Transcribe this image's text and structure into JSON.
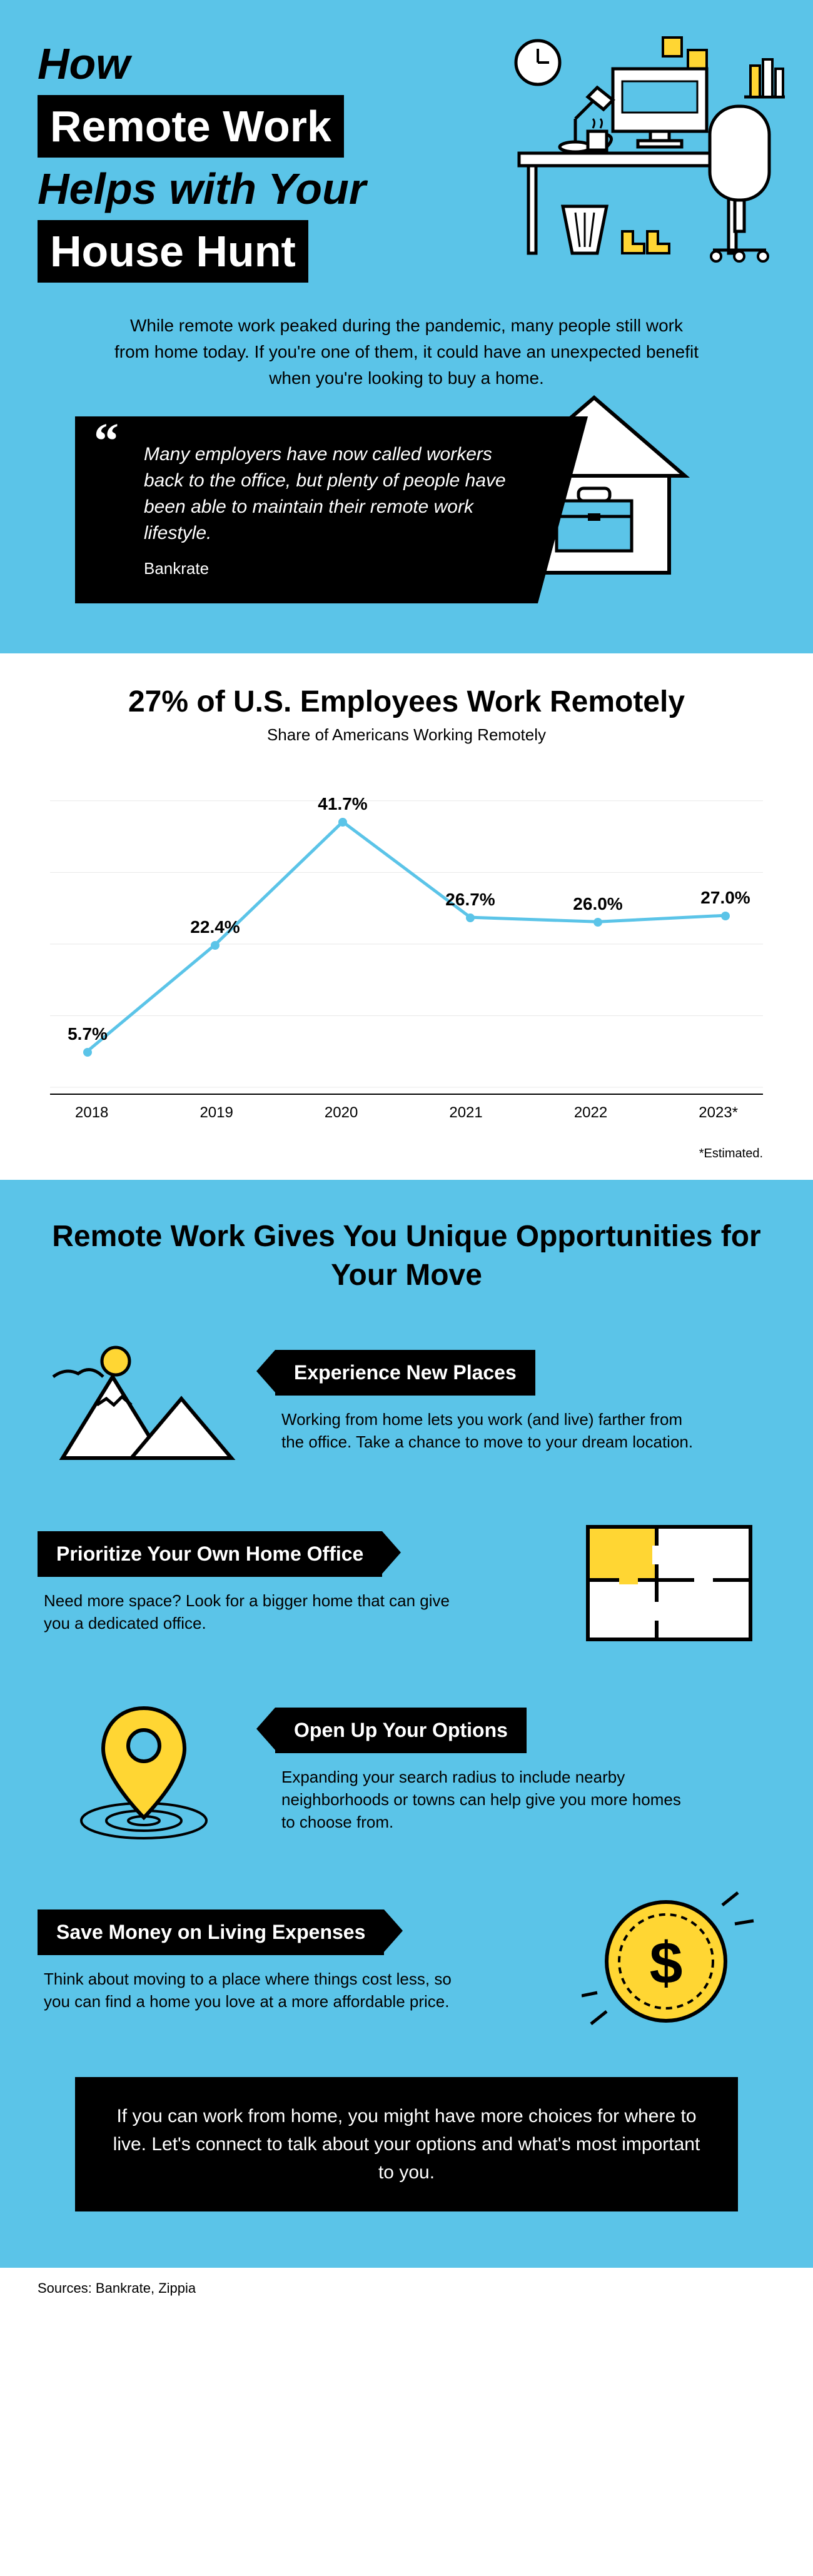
{
  "header": {
    "line1": "How",
    "line2": "Remote Work",
    "line3": "Helps with Your",
    "line4": "House Hunt"
  },
  "intro": "While remote work peaked during the pandemic, many people still work from home today. If you're one of them, it could have an unexpected benefit when you're looking to buy a home.",
  "quote": {
    "text": "Many employers have now called workers back to the office, but plenty of people have been able to maintain their remote work lifestyle.",
    "source": "Bankrate"
  },
  "chart": {
    "title": "27% of U.S. Employees Work Remotely",
    "subtitle": "Share of Americans Working Remotely",
    "type": "line",
    "x_labels": [
      "2018",
      "2019",
      "2020",
      "2021",
      "2022",
      "2023*"
    ],
    "points": [
      {
        "label": "5.7%",
        "value": 5.7
      },
      {
        "label": "22.4%",
        "value": 22.4
      },
      {
        "label": "41.7%",
        "value": 41.7
      },
      {
        "label": "26.7%",
        "value": 26.7
      },
      {
        "label": "26.0%",
        "value": 26.0
      },
      {
        "label": "27.0%",
        "value": 27.0
      }
    ],
    "y_max": 45,
    "line_color": "#5bc4e8",
    "line_width": 5,
    "dot_color": "#5bc4e8",
    "label_fontsize": 28,
    "label_fontweight": 900,
    "note": "*Estimated.",
    "grid_color": "#e8e8e8",
    "background_color": "#ffffff"
  },
  "opps": {
    "title": "Remote Work Gives You Unique Opportunities for Your Move",
    "items": [
      {
        "header": "Experience New Places",
        "body": "Working from home lets you work (and live) farther from the office. Take a chance to move to your dream location."
      },
      {
        "header": "Prioritize Your Own Home Office",
        "body": "Need more space? Look for a bigger home that can give you a dedicated office."
      },
      {
        "header": "Open Up Your Options",
        "body": "Expanding your search radius to include nearby neighborhoods or towns can help give you more homes to choose from."
      },
      {
        "header": "Save Money on Living Expenses",
        "body": "Think about moving to a place where things cost less, so you can find a home you love at a more affordable price."
      }
    ]
  },
  "cta": "If you can work from home, you might have more choices for where to live. Let's connect to talk about your options and what's most important to you.",
  "sources": "Sources: Bankrate, Zippia",
  "colors": {
    "primary_blue": "#5bc4e8",
    "black": "#000000",
    "white": "#ffffff",
    "yellow": "#ffd633"
  }
}
